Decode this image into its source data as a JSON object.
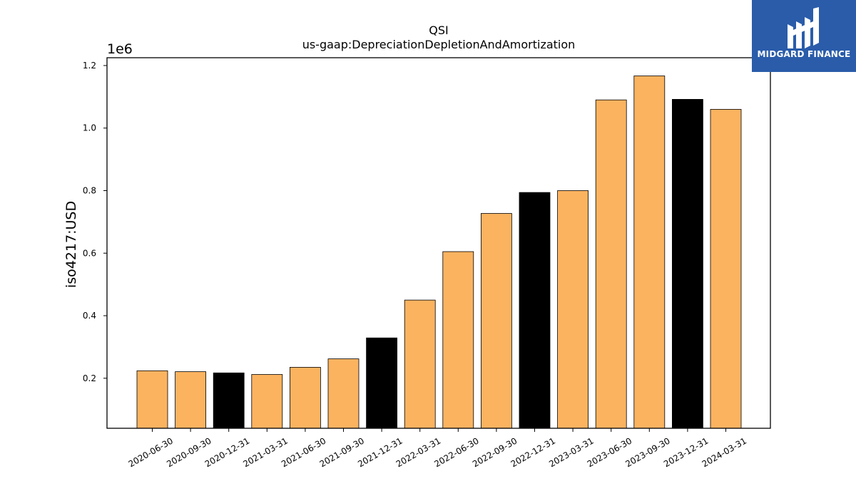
{
  "chart_data": {
    "type": "bar",
    "title": "QSI",
    "subtitle": "us-gaap:DepreciationDepletionAndAmortization",
    "xlabel": "",
    "ylabel": "iso4217:USD",
    "y_scale_label": "1e6",
    "ylim": [
      0.04,
      1.225
    ],
    "y_ticks": [
      0.2,
      0.4,
      0.6,
      0.8,
      1.0,
      1.2
    ],
    "y_tick_labels": [
      "0.2",
      "0.4",
      "0.6",
      "0.8",
      "1.0",
      "1.2"
    ],
    "categories": [
      "2020-06-30",
      "2020-09-30",
      "2020-12-31",
      "2021-03-31",
      "2021-06-30",
      "2021-09-30",
      "2021-12-31",
      "2022-03-31",
      "2022-06-30",
      "2022-09-30",
      "2022-12-31",
      "2023-03-31",
      "2023-06-30",
      "2023-09-30",
      "2023-12-31",
      "2024-03-31"
    ],
    "values": [
      0.224,
      0.221,
      0.217,
      0.212,
      0.235,
      0.262,
      0.329,
      0.45,
      0.605,
      0.727,
      0.794,
      0.8,
      1.09,
      1.167,
      1.092,
      1.06
    ],
    "bar_colors": [
      "#fbb360",
      "#fbb360",
      "#000000",
      "#fbb360",
      "#fbb360",
      "#fbb360",
      "#000000",
      "#fbb360",
      "#fbb360",
      "#fbb360",
      "#000000",
      "#fbb360",
      "#fbb360",
      "#fbb360",
      "#000000",
      "#fbb360"
    ],
    "colors": {
      "quarter": "#fbb360",
      "year_end": "#000000"
    },
    "grid": false,
    "legend": "none"
  },
  "logo": {
    "text": "MIDGARD FINANCE",
    "background": "#2a5caa"
  }
}
